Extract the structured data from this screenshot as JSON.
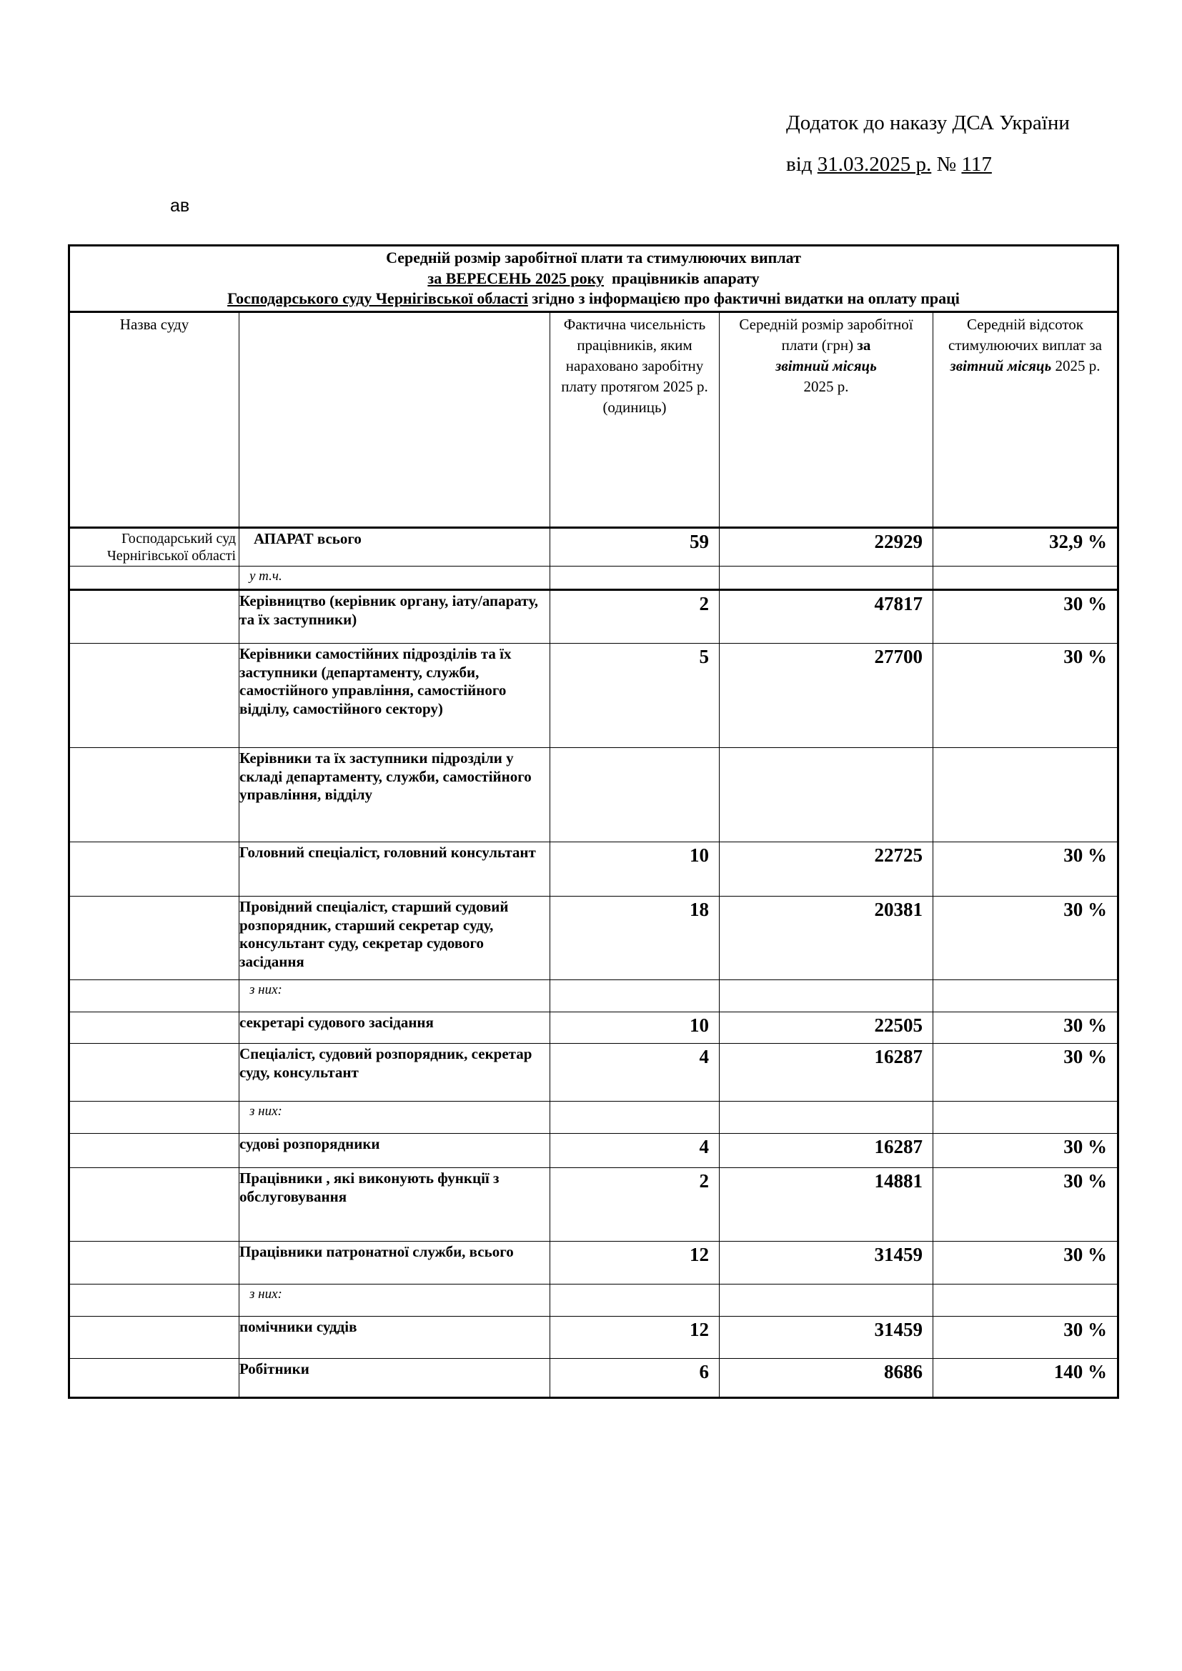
{
  "header": {
    "line1": "Додаток до наказу ДСА України",
    "date_prefix": "від ",
    "date": "31.03.2025 р.",
    "num_prefix": " № ",
    "num": "117"
  },
  "stray_text": "ав",
  "title": {
    "line1": "Середній розмір заробітної плати та стимулюючих виплат",
    "month": "за ВЕРЕСЕНЬ 2025 року",
    "line2_rest": "  працівників апарату",
    "court": "Господарського суду Чернігівської області",
    "line3_rest": " згідно з інформацією про фактичні видатки на оплату праці"
  },
  "columns": {
    "court_name": "Назва суду",
    "count": "Фактична чисельність працівників, яким нараховано заробітну плату протягом 2025 р.  (одиниць)",
    "salary_a": "Середній розмір заробітної плати (грн) ",
    "salary_b": "за",
    "salary_c": "звітний місяць",
    "salary_d": "2025 р.",
    "pct_a": "Середній відсоток стимулюючих виплат за  ",
    "pct_b": "звітний місяць",
    "pct_c": " 2025 р."
  },
  "rows": [
    {
      "court": "Господарський суд Чернігівської області",
      "label": "АПАРАТ всього",
      "count": "59",
      "salary": "22929",
      "pct": "32,9 %"
    },
    {
      "label": "у т.ч.",
      "sub": true
    },
    {
      "label": "Керівництво (керівник органу, іату/апарату, та їх заступники)",
      "count": "2",
      "salary": "47817",
      "pct": "30 %"
    },
    {
      "label": "Керівники самостійних підрозділів та їх заступники (департаменту, служби, самостійного управління, самостійного відділу, самостійного сектору)",
      "count": "5",
      "salary": "27700",
      "pct": "30 %"
    },
    {
      "label": "Керівники  та їх заступники підрозділи у складі департаменту, служби, самостійного управління, відділу",
      "count": "",
      "salary": "",
      "pct": ""
    },
    {
      "label": "Головний спеціаліст, головний консультант",
      "count": "10",
      "salary": "22725",
      "pct": "30 %"
    },
    {
      "label": "Провідний спеціаліст, старший судовий розпорядник, старший секретар суду, консультант суду, секретар судового засідання",
      "count": "18",
      "salary": "20381",
      "pct": "30 %"
    },
    {
      "label": "з них:",
      "sub": true
    },
    {
      "label": "секретарі судового засідання",
      "count": "10",
      "salary": "22505",
      "pct": "30 %"
    },
    {
      "label": "Спеціаліст, судовий розпорядник, секретар суду, консультант",
      "count": "4",
      "salary": "16287",
      "pct": "30 %"
    },
    {
      "label": "з них:",
      "sub": true
    },
    {
      "label": "судові розпорядники",
      "count": "4",
      "salary": "16287",
      "pct": "30 %"
    },
    {
      "label": "Працівники , які виконують функції з обслуговування",
      "count": "2",
      "salary": "14881",
      "pct": "30 %"
    },
    {
      "label": "Працівники патронатної служби, всього",
      "count": "12",
      "salary": "31459",
      "pct": "30 %"
    },
    {
      "label": "з них:",
      "sub": true
    },
    {
      "label": "помічники суддів",
      "count": "12",
      "salary": "31459",
      "pct": "30 %"
    },
    {
      "label": "Робітники",
      "count": "6",
      "salary": "8686",
      "pct": "140 %"
    }
  ]
}
